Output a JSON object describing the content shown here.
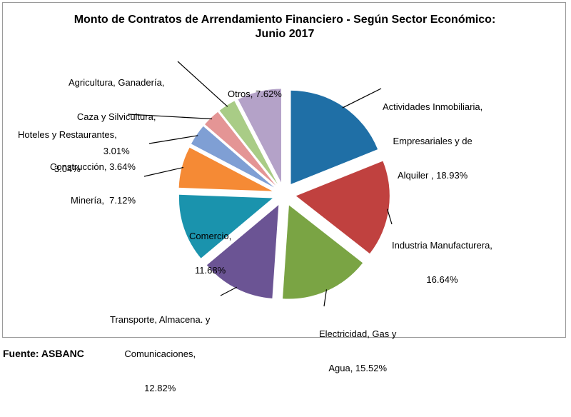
{
  "chart_data": {
    "type": "pie",
    "title_line1": "Monto de Contratos  de Arrendamiento Financiero - Según Sector Económico:",
    "title_line2": "Junio 2017",
    "slices": [
      {
        "label_lines": [
          "Actividades Inmobiliaria,",
          "Empresariales y de",
          "Alquiler , 18.93%"
        ],
        "value": 18.93,
        "color": "#1f6fa6"
      },
      {
        "label_lines": [
          "Industria Manufacturera,",
          "16.64%"
        ],
        "value": 16.64,
        "color": "#c0413f"
      },
      {
        "label_lines": [
          "Electricidad, Gas y",
          "Agua, 15.52%"
        ],
        "value": 15.52,
        "color": "#7aa444"
      },
      {
        "label_lines": [
          "Transporte, Almacena. y",
          "Comunicaciones,",
          "12.82%"
        ],
        "value": 12.82,
        "color": "#6b5494"
      },
      {
        "label_lines": [
          "Comercio,",
          "11.68%"
        ],
        "value": 11.68,
        "color": "#1a93ad"
      },
      {
        "label_lines": [
          "Minería,  7.12%"
        ],
        "value": 7.12,
        "color": "#f58a35"
      },
      {
        "label_lines": [
          "Construcción, 3.64%"
        ],
        "value": 3.64,
        "color": "#7f9fd4"
      },
      {
        "label_lines": [
          "Hoteles y Restaurantes,",
          "3.04%"
        ],
        "value": 3.04,
        "color": "#e49595"
      },
      {
        "label_lines": [
          "Agricultura, Ganadería,",
          "Caza y Silvicultura,",
          "3.01%"
        ],
        "value": 3.01,
        "color": "#a9cc86"
      },
      {
        "label_lines": [
          "Otros, 7.62%"
        ],
        "value": 7.62,
        "color": "#b4a2c8"
      }
    ]
  },
  "footer": {
    "source": "Fuente: ASBANC"
  }
}
